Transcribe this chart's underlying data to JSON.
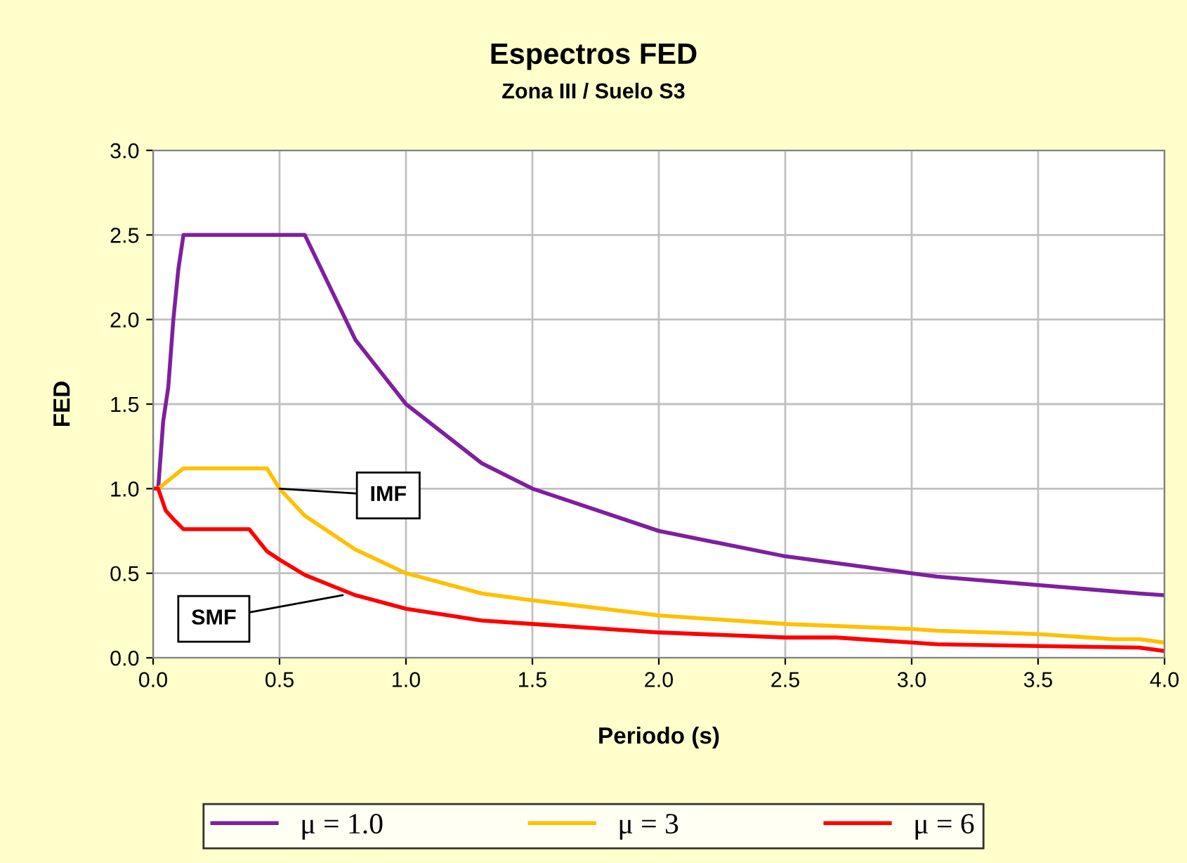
{
  "chart_data": {
    "type": "line",
    "title": "Espectros FED",
    "subtitle": "Zona III / Suelo S3",
    "xlabel": "Periodo (s)",
    "ylabel": "FED",
    "xlim": [
      0,
      4
    ],
    "ylim": [
      0,
      3
    ],
    "xticks": [
      {
        "value": 0,
        "label": "0.0"
      },
      {
        "value": 0.5,
        "label": "0.5"
      },
      {
        "value": 1,
        "label": "1.0"
      },
      {
        "value": 1.5,
        "label": "1.5"
      },
      {
        "value": 2,
        "label": "2.0"
      },
      {
        "value": 2.5,
        "label": "2.5"
      },
      {
        "value": 3,
        "label": "3.0"
      },
      {
        "value": 3.5,
        "label": "3.5"
      },
      {
        "value": 4,
        "label": "4.0"
      }
    ],
    "yticks": [
      {
        "value": 0,
        "label": "0.0"
      },
      {
        "value": 0.5,
        "label": "0.5"
      },
      {
        "value": 1,
        "label": "1.0"
      },
      {
        "value": 1.5,
        "label": "1.5"
      },
      {
        "value": 2,
        "label": "2.0"
      },
      {
        "value": 2.5,
        "label": "2.5"
      },
      {
        "value": 3,
        "label": "3.0"
      }
    ],
    "grid": true,
    "legend": "bottom",
    "marker": "none",
    "line_style": "solid",
    "annotations": [
      {
        "text": "IMF",
        "x": 0.5,
        "y": 1.0
      },
      {
        "text": "SMF",
        "x": 0.75,
        "y": 0.37
      }
    ],
    "series": [
      {
        "name": "μ = 1.0",
        "color": "#7f1f9f",
        "x": [
          0.02,
          0.04,
          0.06,
          0.08,
          0.1,
          0.12,
          0.6,
          0.8,
          1.0,
          1.3,
          1.5,
          2.0,
          2.5,
          3.0,
          3.1,
          3.5,
          3.9,
          4.0
        ],
        "values": [
          1.0,
          1.4,
          1.6,
          2.0,
          2.3,
          2.5,
          2.5,
          1.88,
          1.5,
          1.15,
          1.0,
          0.75,
          0.6,
          0.5,
          0.48,
          0.43,
          0.38,
          0.37
        ]
      },
      {
        "name": "μ = 3",
        "color": "#ffc000",
        "x": [
          0,
          0.02,
          0.12,
          0.45,
          0.5,
          0.6,
          0.8,
          1.0,
          1.3,
          1.5,
          2.0,
          2.5,
          3.0,
          3.1,
          3.5,
          3.8,
          3.9,
          4.0
        ],
        "values": [
          1.0,
          1.0,
          1.12,
          1.12,
          1.0,
          0.84,
          0.64,
          0.5,
          0.38,
          0.34,
          0.25,
          0.2,
          0.17,
          0.16,
          0.14,
          0.11,
          0.11,
          0.09
        ]
      },
      {
        "name": "μ = 6",
        "color": "#ff0000",
        "x": [
          0,
          0.02,
          0.05,
          0.08,
          0.12,
          0.38,
          0.45,
          0.5,
          0.6,
          0.8,
          1.0,
          1.3,
          1.5,
          2.0,
          2.5,
          2.7,
          3.0,
          3.1,
          3.5,
          3.9,
          4.0
        ],
        "values": [
          1.0,
          1.0,
          0.87,
          0.82,
          0.76,
          0.76,
          0.63,
          0.58,
          0.49,
          0.37,
          0.29,
          0.22,
          0.2,
          0.15,
          0.12,
          0.12,
          0.09,
          0.08,
          0.07,
          0.06,
          0.04
        ]
      }
    ]
  }
}
